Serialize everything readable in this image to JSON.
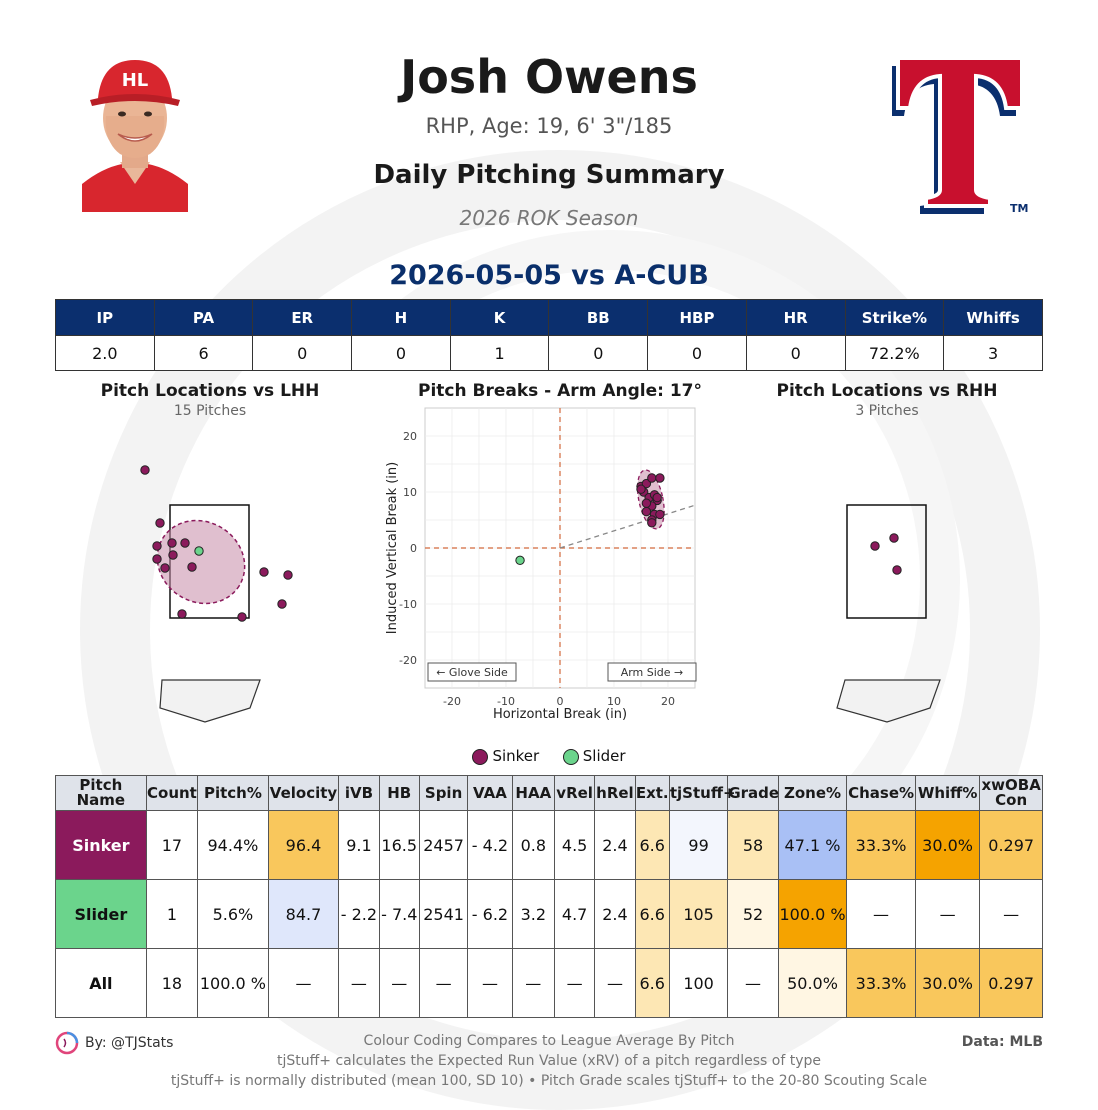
{
  "player": {
    "name": "Josh Owens",
    "bio": "RHP, Age: 19, 6' 3\"/185",
    "summary_title": "Daily Pitching Summary",
    "season": "2026 ROK Season",
    "game": "2026-05-05 vs A-CUB",
    "team_logo_letter": "T",
    "team_logo_tm": "TM"
  },
  "stat_line": {
    "headers": [
      "IP",
      "PA",
      "ER",
      "H",
      "K",
      "BB",
      "HBP",
      "HR",
      "Strike%",
      "Whiffs"
    ],
    "values": [
      "2.0",
      "6",
      "0",
      "0",
      "1",
      "0",
      "0",
      "0",
      "72.2%",
      "3"
    ]
  },
  "plots": {
    "lhh_title": "Pitch Locations vs LHH",
    "lhh_sub": "15 Pitches",
    "rhh_title": "Pitch Locations vs RHH",
    "rhh_sub": "3 Pitches",
    "breaks_title": "Pitch Breaks - Arm Angle: 17°"
  },
  "colors": {
    "sinker": "#8b1a5c",
    "slider": "#6bd48c",
    "header_blue": "#0b2f6e",
    "orange_high": "#f5a623",
    "orange_mid": "#f9c75c",
    "blue_low": "#dbe4fb"
  },
  "chart_data": {
    "type": "scatter",
    "title": "Pitch Breaks - Arm Angle: 17°",
    "xlabel": "Horizontal Break (in)",
    "ylabel": "Induced Vertical Break (in)",
    "xlim": [
      -25,
      25
    ],
    "ylim": [
      -25,
      25
    ],
    "x_ticks": [
      -20,
      -10,
      0,
      10,
      20
    ],
    "y_ticks": [
      20,
      10,
      0,
      -10,
      -20
    ],
    "grid": true,
    "glove_side_label": "← Glove Side",
    "arm_side_label": "Arm Side →",
    "arm_angle_deg": 17,
    "series": [
      {
        "name": "Sinker",
        "color": "#8b1a5c",
        "points": [
          [
            15,
            11
          ],
          [
            16,
            11.5
          ],
          [
            17,
            12.5
          ],
          [
            18.5,
            12.5
          ],
          [
            15.5,
            10
          ],
          [
            16.5,
            9
          ],
          [
            17.5,
            9.5
          ],
          [
            18,
            8.5
          ],
          [
            17,
            7.5
          ],
          [
            16,
            6.5
          ],
          [
            17.5,
            6
          ],
          [
            18.5,
            6
          ],
          [
            17,
            5
          ],
          [
            15,
            10.5
          ],
          [
            16,
            8
          ],
          [
            17,
            4.5
          ],
          [
            18,
            9
          ]
        ]
      },
      {
        "name": "Slider",
        "color": "#6bd48c",
        "points": [
          [
            -7.4,
            -2.2
          ]
        ]
      }
    ],
    "legend": [
      "Sinker",
      "Slider"
    ],
    "legend_position": "bottom"
  },
  "pitch_table": {
    "headers": [
      "Pitch Name",
      "Count",
      "Pitch%",
      "Velocity",
      "iVB",
      "HB",
      "Spin",
      "VAA",
      "HAA",
      "vRel",
      "hRel",
      "Ext.",
      "tjStuff+",
      "Grade",
      "Zone%",
      "Chase%",
      "Whiff%",
      "xwOBA Con"
    ],
    "rows": [
      {
        "cells": [
          "Sinker",
          "17",
          "94.4%",
          "96.4",
          "9.1",
          "16.5",
          "2457",
          "- 4.2",
          "0.8",
          "4.5",
          "2.4",
          "6.6",
          "99",
          "58",
          "47.1  %",
          "33.3%",
          "30.0%",
          "0.297"
        ]
      },
      {
        "cells": [
          "Slider",
          "1",
          "5.6%",
          "84.7",
          "- 2.2",
          "- 7.4",
          "2541",
          "- 6.2",
          "3.2",
          "4.7",
          "2.4",
          "6.6",
          "105",
          "52",
          "100.0 %",
          "—",
          "—",
          "—"
        ]
      },
      {
        "cells": [
          "All",
          "18",
          "100.0 %",
          "—",
          "—",
          "—",
          "—",
          "—",
          "—",
          "—",
          "—",
          "6.6",
          "100",
          "—",
          "50.0%",
          "33.3%",
          "30.0%",
          "0.297"
        ]
      }
    ]
  },
  "footer": {
    "byline": "By: @TJStats",
    "note1": "Colour Coding Compares to League Average By Pitch",
    "note2": "tjStuff+ calculates the Expected Run Value (xRV) of a pitch regardless of type",
    "note3": "tjStuff+ is normally distributed (mean 100, SD 10) • Pitch Grade scales tjStuff+ to the 20-80 Scouting Scale",
    "data_source": "Data: MLB"
  }
}
